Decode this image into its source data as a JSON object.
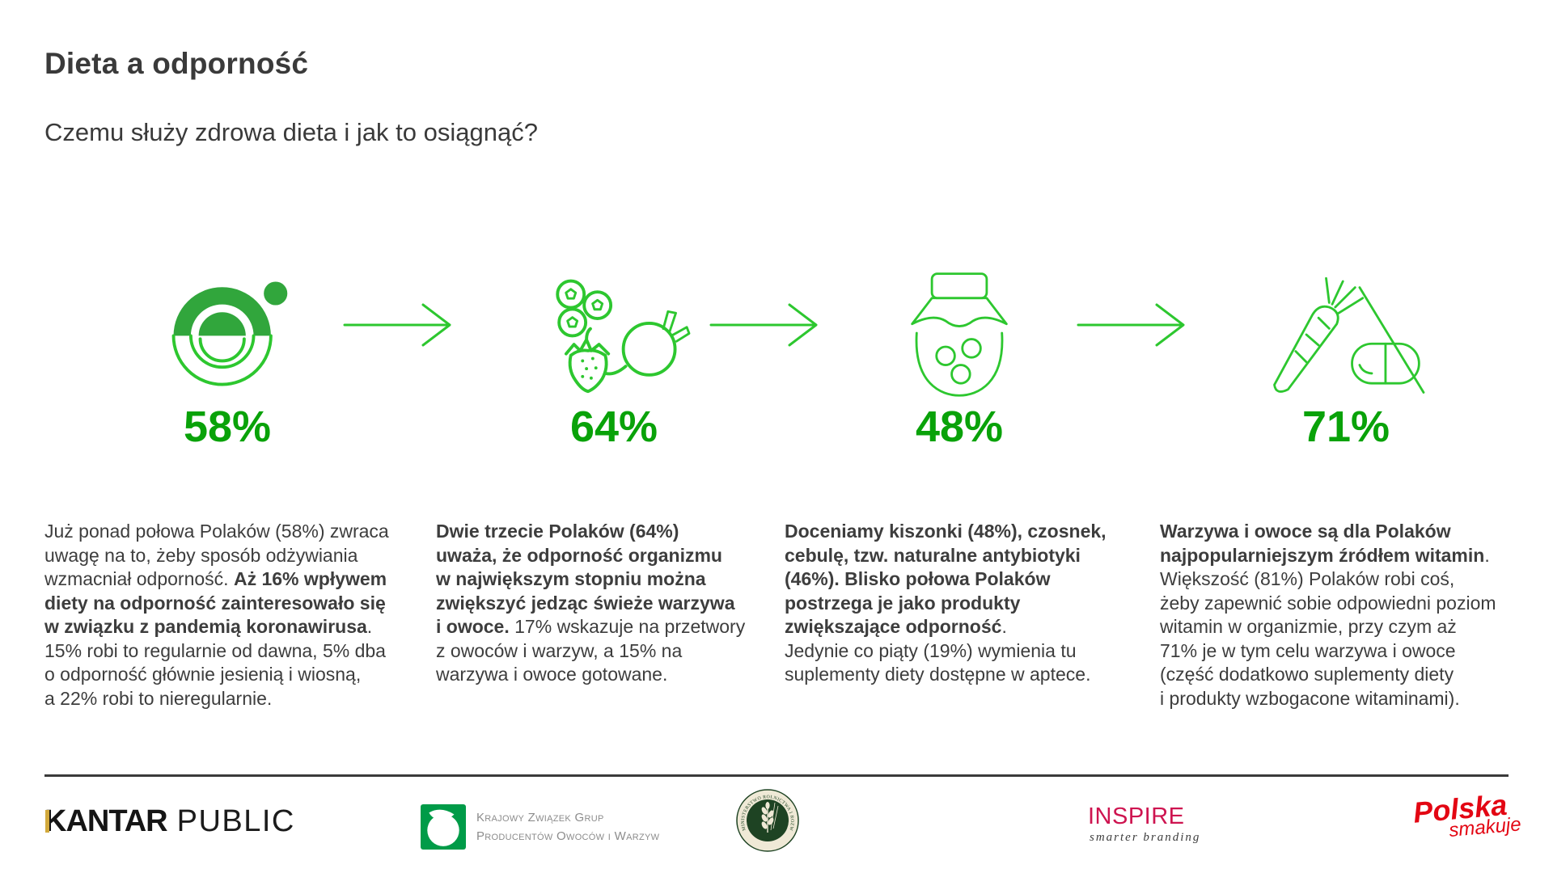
{
  "page": {
    "title": "Dieta a odporność",
    "subtitle": "Czemu służy zdrowa dieta i jak to osiągnąć?"
  },
  "colors": {
    "accent_green": "#09A209",
    "icon_green": "#2DC72F",
    "fill_green": "#31A63C",
    "text_dark": "#3D3D3D",
    "kantar_gold": "#D2A93C",
    "inspire_red": "#CE1450",
    "polska_red": "#E30613",
    "kzg_green": "#009B48",
    "seal_green": "#1E4323",
    "seal_cream": "#EFE9D6"
  },
  "stats": [
    {
      "icon": "half-plate-icon",
      "percent": "58%",
      "segments": [
        {
          "text": "Już ponad połowa Polaków (58%) zwraca\nuwagę na to, żeby sposób odżywiania\nwzmacniał odporność. ",
          "bold": false
        },
        {
          "text": "Aż 16% wpływem\ndiety na odporność zainteresowało się\nw związku z pandemią koronawirusa",
          "bold": true
        },
        {
          "text": ".\n15% robi to regularnie od dawna, 5% dba\no odporność głównie jesienią i wiosną,\na 22% robi to nieregularnie.",
          "bold": false
        }
      ]
    },
    {
      "icon": "fresh-fruits-vegetables-icon",
      "percent": "64%",
      "segments": [
        {
          "text": "Dwie trzecie Polaków (64%)\nuważa, że odporność organizmu\nw największym stopniu można\nzwiększyć jedząc świeże warzywa\ni owoce.",
          "bold": true
        },
        {
          "text": " 17% wskazuje na przetwory\nz owoców i warzyw, a 15% na\nwarzywa i owoce gotowane.",
          "bold": false
        }
      ]
    },
    {
      "icon": "pickle-jar-icon",
      "percent": "48%",
      "segments": [
        {
          "text": "Doceniamy kiszonki (48%), czosnek,\ncebulę, tzw. naturalne antybiotyki\n(46%). Blisko połowa Polaków\npostrzega je jako produkty\nzwiększające odporność",
          "bold": true
        },
        {
          "text": ".\nJedynie co piąty (19%) wymienia tu\nsuplementy diety dostępne w aptece.",
          "bold": false
        }
      ]
    },
    {
      "icon": "carrot-no-pill-icon",
      "percent": "71%",
      "segments": [
        {
          "text": "Warzywa i owoce są dla Polaków\nnajpopularniejszym źródłem witamin",
          "bold": true
        },
        {
          "text": ".\nWiększość (81%) Polaków robi coś,\nżeby zapewnić sobie odpowiedni poziom\nwitamin w organizmie, przy czym aż\n71% je w tym celu warzywa i owoce\n(część dodatkowo suplementy diety\ni produkty wzbogacone witaminami).",
          "bold": false
        }
      ]
    }
  ],
  "footer": {
    "kantar": {
      "brand": "KANTAR",
      "suffix": "PUBLIC"
    },
    "kzg": {
      "line1": "Krajowy Związek Grup",
      "line2": "Producentów Owoców i Warzyw"
    },
    "ministry": {
      "seal_text": "MINISTERSTWO ROLNICTWA I ROZWOJU WSI"
    },
    "inspire": {
      "brand": "INSPIRE",
      "tagline": "smarter branding"
    },
    "polska": {
      "line1": "Polska",
      "line2": "smakuje"
    }
  }
}
